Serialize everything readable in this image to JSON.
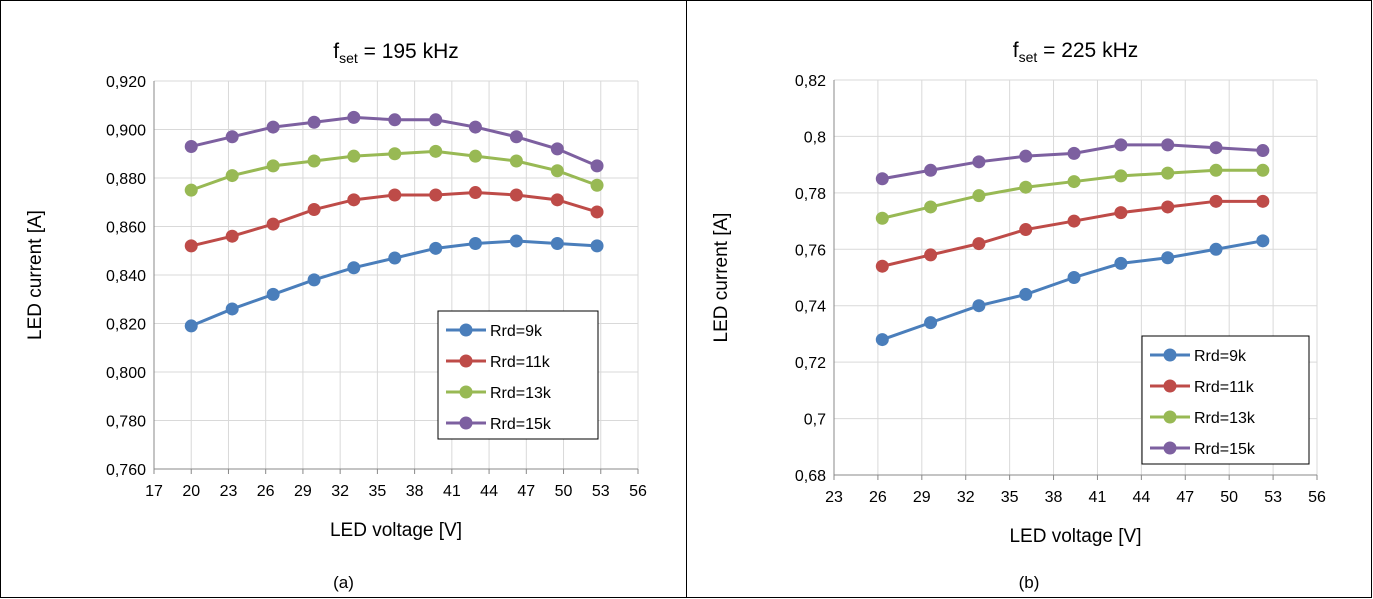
{
  "chart_data": [
    {
      "type": "line",
      "title_main": "f",
      "title_sub": "set",
      "title_rest": " = 195 kHz",
      "xlabel": "LED voltage [V]",
      "ylabel": "LED current [A]",
      "caption": "(a)",
      "xlim": [
        17,
        56
      ],
      "ylim": [
        0.76,
        0.92
      ],
      "x_ticks": [
        17,
        20,
        23,
        26,
        29,
        32,
        35,
        38,
        41,
        44,
        47,
        50,
        53,
        56
      ],
      "x_tick_labels": [
        "17",
        "20",
        "23",
        "26",
        "29",
        "32",
        "35",
        "38",
        "41",
        "44",
        "47",
        "50",
        "53",
        "56"
      ],
      "y_ticks": [
        0.76,
        0.78,
        0.8,
        0.82,
        0.84,
        0.86,
        0.88,
        0.9,
        0.92
      ],
      "y_tick_labels": [
        "0,760",
        "0,780",
        "0,800",
        "0,820",
        "0,840",
        "0,860",
        "0,880",
        "0,900",
        "0,920"
      ],
      "grid": true,
      "legend_position": "bottom-right",
      "x": [
        20,
        23.3,
        26.6,
        29.9,
        33.1,
        36.4,
        39.7,
        42.9,
        46.2,
        49.5,
        52.7
      ],
      "series": [
        {
          "name": "Rrd=9k",
          "color": "#4a7ebb",
          "values": [
            0.819,
            0.826,
            0.832,
            0.838,
            0.843,
            0.847,
            0.851,
            0.853,
            0.854,
            0.853,
            0.852
          ]
        },
        {
          "name": "Rrd=11k",
          "color": "#be4b48",
          "values": [
            0.852,
            0.856,
            0.861,
            0.867,
            0.871,
            0.873,
            0.873,
            0.874,
            0.873,
            0.871,
            0.866
          ]
        },
        {
          "name": "Rrd=13k",
          "color": "#98b954",
          "values": [
            0.875,
            0.881,
            0.885,
            0.887,
            0.889,
            0.89,
            0.891,
            0.889,
            0.887,
            0.883,
            0.877
          ]
        },
        {
          "name": "Rrd=15k",
          "color": "#7d60a0",
          "values": [
            0.893,
            0.897,
            0.901,
            0.903,
            0.905,
            0.904,
            0.904,
            0.901,
            0.897,
            0.892,
            0.885
          ]
        }
      ]
    },
    {
      "type": "line",
      "title_main": "f",
      "title_sub": "set",
      "title_rest": " = 225 kHz",
      "xlabel": "LED voltage [V]",
      "ylabel": "LED current [A]",
      "caption": "(b)",
      "xlim": [
        23,
        56
      ],
      "ylim": [
        0.68,
        0.82
      ],
      "x_ticks": [
        23,
        26,
        29,
        32,
        35,
        38,
        41,
        44,
        47,
        50,
        53,
        56
      ],
      "x_tick_labels": [
        "23",
        "26",
        "29",
        "32",
        "35",
        "38",
        "41",
        "44",
        "47",
        "50",
        "53",
        "56"
      ],
      "y_ticks": [
        0.68,
        0.7,
        0.72,
        0.74,
        0.76,
        0.78,
        0.8,
        0.82
      ],
      "y_tick_labels": [
        "0,68",
        "0,7",
        "0,72",
        "0,74",
        "0,76",
        "0,78",
        "0,8",
        "0,82"
      ],
      "grid": true,
      "legend_position": "bottom-right",
      "x": [
        26.3,
        29.6,
        32.9,
        36.1,
        39.4,
        42.6,
        45.8,
        49.1,
        52.3
      ],
      "series": [
        {
          "name": "Rrd=9k",
          "color": "#4a7ebb",
          "values": [
            0.728,
            0.734,
            0.74,
            0.744,
            0.75,
            0.755,
            0.757,
            0.76,
            0.763
          ]
        },
        {
          "name": "Rrd=11k",
          "color": "#be4b48",
          "values": [
            0.754,
            0.758,
            0.762,
            0.767,
            0.77,
            0.773,
            0.775,
            0.777,
            0.777
          ]
        },
        {
          "name": "Rrd=13k",
          "color": "#98b954",
          "values": [
            0.771,
            0.775,
            0.779,
            0.782,
            0.784,
            0.786,
            0.787,
            0.788,
            0.788
          ]
        },
        {
          "name": "Rrd=15k",
          "color": "#7d60a0",
          "values": [
            0.785,
            0.788,
            0.791,
            0.793,
            0.794,
            0.797,
            0.797,
            0.796,
            0.795
          ]
        }
      ]
    }
  ]
}
